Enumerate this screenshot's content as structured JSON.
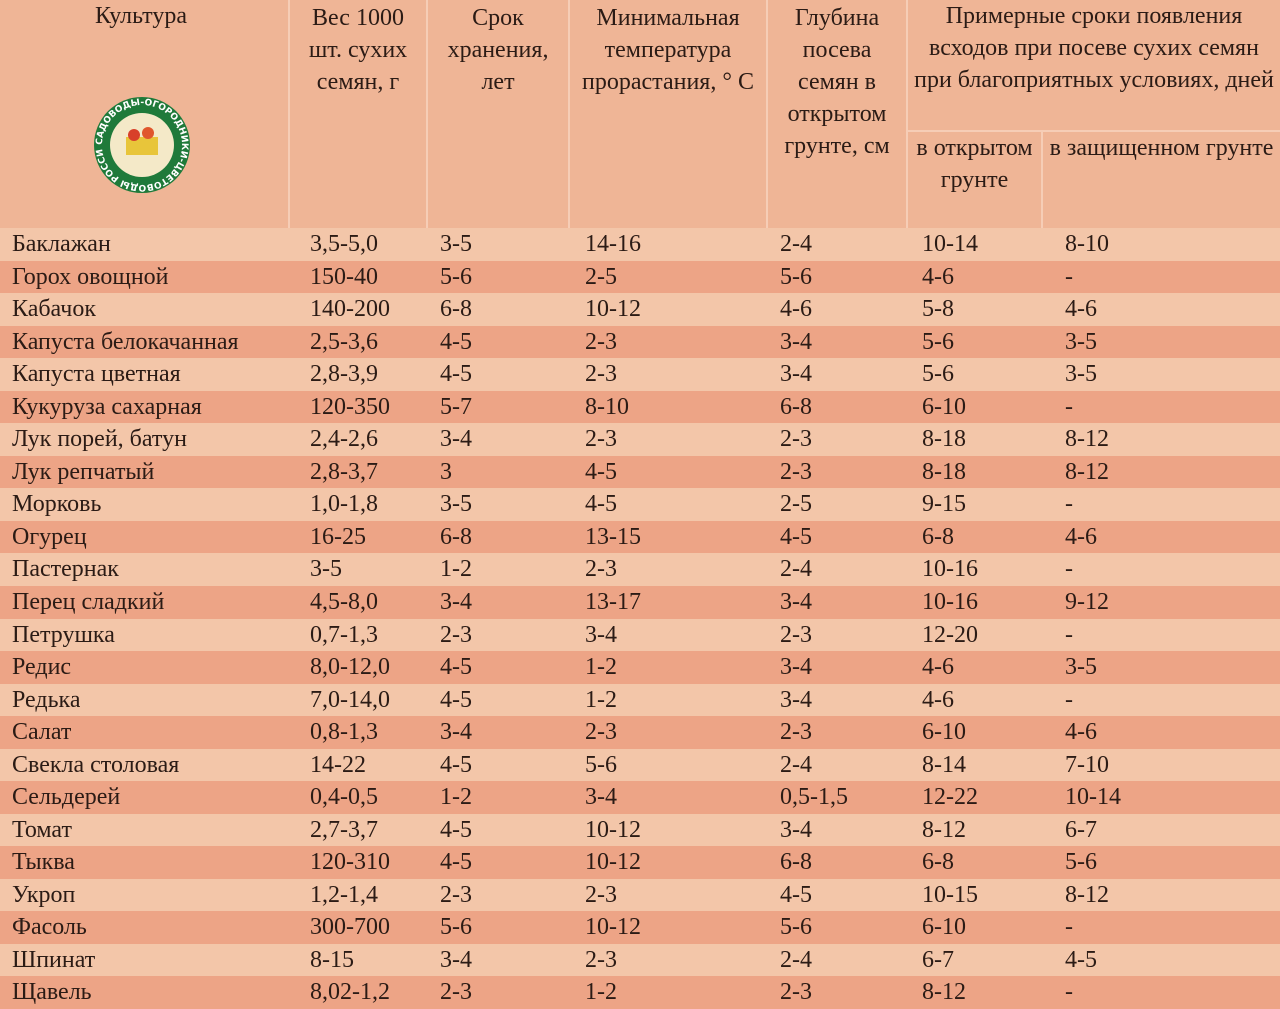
{
  "logo": "САДОВОДЫ-ОГОРОДНИКИ-ЦВЕТОВОДЫ РОССИИ",
  "table": {
    "header": [
      "Культура",
      "Вес 1000 шт. сухих семян, г",
      "Срок хранения, лет",
      "Минимальная температура прорастания, ° С",
      "Глубина посева семян в открытом грунте, см",
      "Примерные сроки появления всходов при посеве сухих семян при благоприятных условиях, дней"
    ],
    "subheader": [
      "в открытом грунте",
      "в защищенном грунте"
    ],
    "rows": [
      [
        "Баклажан",
        "3,5-5,0",
        "3-5",
        "14-16",
        "2-4",
        "10-14",
        "8-10"
      ],
      [
        "Горох овощной",
        "150-40",
        "5-6",
        "2-5",
        "5-6",
        "4-6",
        "-"
      ],
      [
        "Кабачок",
        "140-200",
        "6-8",
        "10-12",
        "4-6",
        "5-8",
        "4-6"
      ],
      [
        "Капуста белокачанная",
        "2,5-3,6",
        "4-5",
        "2-3",
        "3-4",
        "5-6",
        "3-5"
      ],
      [
        "Капуста цветная",
        "2,8-3,9",
        "4-5",
        "2-3",
        "3-4",
        "5-6",
        "3-5"
      ],
      [
        "Кукуруза сахарная",
        "120-350",
        "5-7",
        "8-10",
        "6-8",
        "6-10",
        "-"
      ],
      [
        "Лук порей, батун",
        "2,4-2,6",
        "3-4",
        "2-3",
        "2-3",
        "8-18",
        "8-12"
      ],
      [
        "Лук репчатый",
        "2,8-3,7",
        "3",
        "4-5",
        "2-3",
        "8-18",
        "8-12"
      ],
      [
        "Морковь",
        "1,0-1,8",
        "3-5",
        "4-5",
        "2-5",
        "9-15",
        "-"
      ],
      [
        "Огурец",
        "16-25",
        "6-8",
        "13-15",
        "4-5",
        "6-8",
        "4-6"
      ],
      [
        "Пастернак",
        "3-5",
        "1-2",
        "2-3",
        "2-4",
        "10-16",
        "-"
      ],
      [
        "Перец сладкий",
        "4,5-8,0",
        "3-4",
        "13-17",
        "3-4",
        "10-16",
        "9-12"
      ],
      [
        "Петрушка",
        "0,7-1,3",
        "2-3",
        "3-4",
        "2-3",
        "12-20",
        "-"
      ],
      [
        "Редис",
        "8,0-12,0",
        "4-5",
        "1-2",
        "3-4",
        "4-6",
        "3-5"
      ],
      [
        "Редька",
        "7,0-14,0",
        "4-5",
        "1-2",
        "3-4",
        "4-6",
        "-"
      ],
      [
        "Салат",
        "0,8-1,3",
        "3-4",
        "2-3",
        "2-3",
        "6-10",
        "4-6"
      ],
      [
        "Свекла столовая",
        "14-22",
        "4-5",
        "5-6",
        "2-4",
        "8-14",
        "7-10"
      ],
      [
        "Сельдерей",
        "0,4-0,5",
        "1-2",
        "3-4",
        "0,5-1,5",
        "12-22",
        "10-14"
      ],
      [
        "Томат",
        "2,7-3,7",
        "4-5",
        "10-12",
        "3-4",
        "8-12",
        "6-7"
      ],
      [
        "Тыква",
        "120-310",
        "4-5",
        "10-12",
        "6-8",
        "6-8",
        "5-6"
      ],
      [
        "Укроп",
        "1,2-1,4",
        "2-3",
        "2-3",
        "4-5",
        "10-15",
        "8-12"
      ],
      [
        "Фасоль",
        "300-700",
        "5-6",
        "10-12",
        "5-6",
        "6-10",
        "-"
      ],
      [
        "Шпинат",
        "8-15",
        "3-4",
        "2-3",
        "2-4",
        "6-7",
        "4-5"
      ],
      [
        "Щавель",
        "8,02-1,2",
        "2-3",
        "1-2",
        "2-3",
        "8-12",
        "-"
      ]
    ]
  }
}
